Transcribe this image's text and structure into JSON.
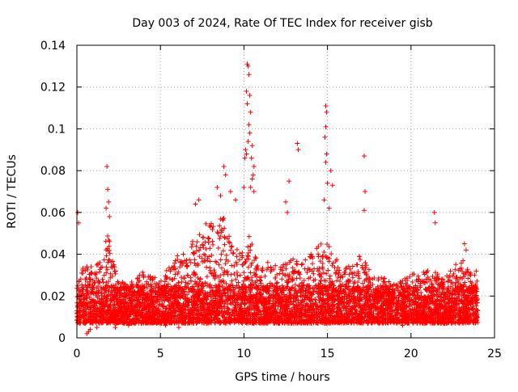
{
  "chart_data": {
    "type": "scatter",
    "title": "Day 003 of 2024, Rate Of TEC Index for receiver gisb",
    "xlabel": "GPS time / hours",
    "ylabel": "ROTI / TECUs",
    "xlim": [
      0,
      25
    ],
    "ylim": [
      0,
      0.14
    ],
    "xticks": [
      0,
      5,
      10,
      15,
      20,
      25
    ],
    "xtick_labels": [
      "0",
      "5",
      "10",
      "15",
      "20",
      "25"
    ],
    "yticks": [
      0,
      0.02,
      0.04,
      0.06,
      0.08,
      0.1,
      0.12,
      0.14
    ],
    "ytick_labels": [
      "0",
      "0.02",
      "0.04",
      "0.06",
      "0.08",
      "0.1",
      "0.12",
      "0.14"
    ],
    "grid": true,
    "marker": "plus",
    "color": "#ff0000",
    "x_range_hours": [
      0,
      24
    ],
    "baseline_band": [
      0.007,
      0.025
    ],
    "profile": [
      [
        0.0,
        0.028
      ],
      [
        0.5,
        0.032
      ],
      [
        1.0,
        0.03
      ],
      [
        1.5,
        0.034
      ],
      [
        1.8,
        0.045
      ],
      [
        2.0,
        0.04
      ],
      [
        2.5,
        0.026
      ],
      [
        3.0,
        0.024
      ],
      [
        3.5,
        0.026
      ],
      [
        4.0,
        0.03
      ],
      [
        4.5,
        0.026
      ],
      [
        5.0,
        0.027
      ],
      [
        5.5,
        0.032
      ],
      [
        6.0,
        0.036
      ],
      [
        6.5,
        0.036
      ],
      [
        7.0,
        0.042
      ],
      [
        7.5,
        0.048
      ],
      [
        8.0,
        0.05
      ],
      [
        8.5,
        0.052
      ],
      [
        9.0,
        0.05
      ],
      [
        9.5,
        0.04
      ],
      [
        10.0,
        0.036
      ],
      [
        10.3,
        0.045
      ],
      [
        10.5,
        0.04
      ],
      [
        11.0,
        0.03
      ],
      [
        11.5,
        0.034
      ],
      [
        12.0,
        0.03
      ],
      [
        12.5,
        0.034
      ],
      [
        13.0,
        0.034
      ],
      [
        13.5,
        0.032
      ],
      [
        14.0,
        0.036
      ],
      [
        14.5,
        0.04
      ],
      [
        15.0,
        0.042
      ],
      [
        15.5,
        0.034
      ],
      [
        16.0,
        0.03
      ],
      [
        16.5,
        0.032
      ],
      [
        17.0,
        0.036
      ],
      [
        17.5,
        0.03
      ],
      [
        18.0,
        0.026
      ],
      [
        18.5,
        0.026
      ],
      [
        19.0,
        0.024
      ],
      [
        19.5,
        0.026
      ],
      [
        20.0,
        0.028
      ],
      [
        20.5,
        0.028
      ],
      [
        21.0,
        0.03
      ],
      [
        21.5,
        0.028
      ],
      [
        22.0,
        0.026
      ],
      [
        22.5,
        0.03
      ],
      [
        23.0,
        0.034
      ],
      [
        23.5,
        0.032
      ],
      [
        24.0,
        0.028
      ]
    ],
    "spikes": [
      {
        "x": 0.05,
        "y": 0.06
      },
      {
        "x": 0.1,
        "y": 0.055
      },
      {
        "x": 1.8,
        "y": 0.082
      },
      {
        "x": 1.85,
        "y": 0.071
      },
      {
        "x": 1.9,
        "y": 0.065
      },
      {
        "x": 1.75,
        "y": 0.062
      },
      {
        "x": 1.95,
        "y": 0.058
      },
      {
        "x": 7.1,
        "y": 0.064
      },
      {
        "x": 7.3,
        "y": 0.066
      },
      {
        "x": 8.8,
        "y": 0.082
      },
      {
        "x": 8.9,
        "y": 0.078
      },
      {
        "x": 8.4,
        "y": 0.072
      },
      {
        "x": 8.6,
        "y": 0.068
      },
      {
        "x": 9.2,
        "y": 0.07
      },
      {
        "x": 9.5,
        "y": 0.066
      },
      {
        "x": 10.2,
        "y": 0.131
      },
      {
        "x": 10.25,
        "y": 0.13
      },
      {
        "x": 10.3,
        "y": 0.126
      },
      {
        "x": 10.15,
        "y": 0.118
      },
      {
        "x": 10.35,
        "y": 0.116
      },
      {
        "x": 10.2,
        "y": 0.112
      },
      {
        "x": 10.4,
        "y": 0.108
      },
      {
        "x": 10.3,
        "y": 0.102
      },
      {
        "x": 10.35,
        "y": 0.098
      },
      {
        "x": 10.25,
        "y": 0.094
      },
      {
        "x": 10.1,
        "y": 0.09
      },
      {
        "x": 10.15,
        "y": 0.088
      },
      {
        "x": 10.05,
        "y": 0.086
      },
      {
        "x": 10.5,
        "y": 0.092
      },
      {
        "x": 10.45,
        "y": 0.086
      },
      {
        "x": 10.6,
        "y": 0.082
      },
      {
        "x": 10.55,
        "y": 0.078
      },
      {
        "x": 10.5,
        "y": 0.076
      },
      {
        "x": 10.4,
        "y": 0.072
      },
      {
        "x": 10.0,
        "y": 0.072
      },
      {
        "x": 10.6,
        "y": 0.07
      },
      {
        "x": 12.7,
        "y": 0.075
      },
      {
        "x": 12.5,
        "y": 0.065
      },
      {
        "x": 12.6,
        "y": 0.06
      },
      {
        "x": 13.2,
        "y": 0.093
      },
      {
        "x": 13.25,
        "y": 0.09
      },
      {
        "x": 14.9,
        "y": 0.111
      },
      {
        "x": 14.95,
        "y": 0.108
      },
      {
        "x": 14.9,
        "y": 0.101
      },
      {
        "x": 14.85,
        "y": 0.096
      },
      {
        "x": 14.95,
        "y": 0.088
      },
      {
        "x": 14.9,
        "y": 0.084
      },
      {
        "x": 15.2,
        "y": 0.08
      },
      {
        "x": 15.0,
        "y": 0.074
      },
      {
        "x": 15.3,
        "y": 0.073
      },
      {
        "x": 14.8,
        "y": 0.066
      },
      {
        "x": 15.1,
        "y": 0.062
      },
      {
        "x": 17.2,
        "y": 0.087
      },
      {
        "x": 17.25,
        "y": 0.07
      },
      {
        "x": 17.2,
        "y": 0.061
      },
      {
        "x": 21.4,
        "y": 0.06
      },
      {
        "x": 21.45,
        "y": 0.055
      },
      {
        "x": 23.2,
        "y": 0.045
      },
      {
        "x": 23.3,
        "y": 0.042
      }
    ],
    "minima": [
      {
        "x": 0.6,
        "y": 0.002
      },
      {
        "x": 0.7,
        "y": 0.003
      },
      {
        "x": 0.8,
        "y": 0.004
      },
      {
        "x": 1.2,
        "y": 0.005
      },
      {
        "x": 2.3,
        "y": 0.005
      },
      {
        "x": 3.1,
        "y": 0.006
      },
      {
        "x": 5.3,
        "y": 0.006
      },
      {
        "x": 6.1,
        "y": 0.005
      },
      {
        "x": 19.5,
        "y": 0.006
      }
    ]
  }
}
